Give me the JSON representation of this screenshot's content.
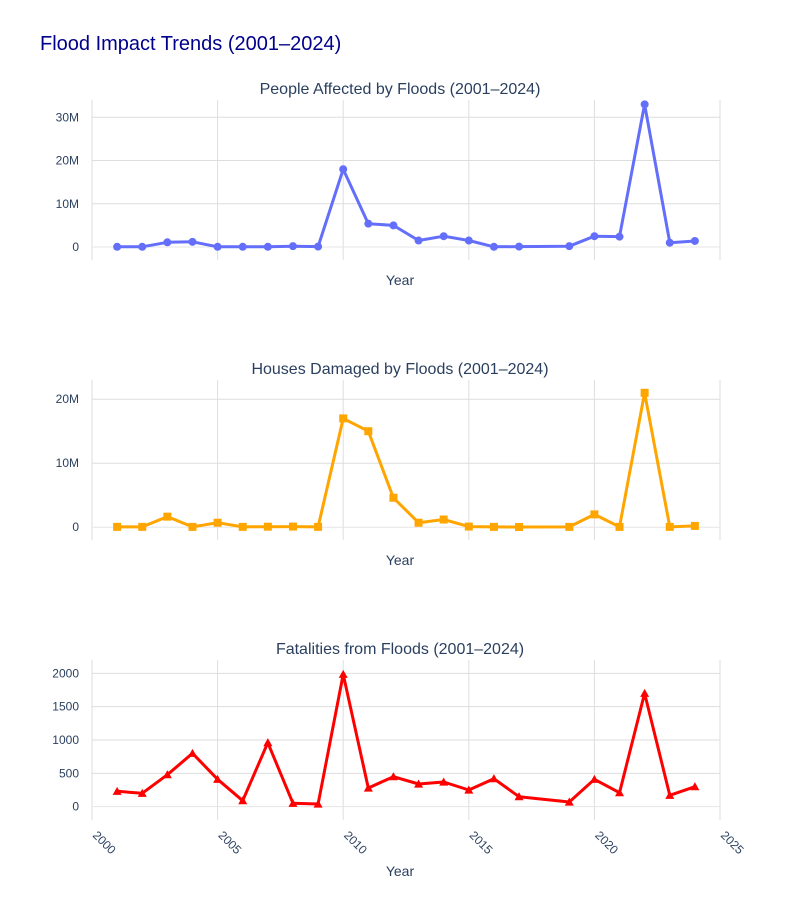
{
  "title": "Flood Impact Trends (2001–2024)",
  "chart_data": [
    {
      "type": "line",
      "title": "People Affected by Floods (2001–2024)",
      "xlabel": "Year",
      "ylabel": "",
      "xlim": [
        2000,
        2025
      ],
      "xticks": [
        2000,
        2005,
        2010,
        2015,
        2020,
        2025
      ],
      "ylim": [
        -3000000,
        34000000
      ],
      "yticks": [
        0,
        10000000,
        20000000,
        30000000
      ],
      "ytick_labels": [
        "0",
        "10M",
        "20M",
        "30M"
      ],
      "show_x_tick_labels": false,
      "marker": "circle",
      "color": "#636efa",
      "series": [
        {
          "x": [
            2001,
            2002,
            2003,
            2004,
            2005,
            2006,
            2007,
            2008,
            2009,
            2010,
            2011,
            2012,
            2013,
            2014,
            2015,
            2016,
            2017,
            2019,
            2020,
            2021,
            2022,
            2023,
            2024
          ],
          "values": [
            50000,
            60000,
            1100000,
            1200000,
            50000,
            50000,
            60000,
            200000,
            100000,
            18000000,
            5400000,
            5000000,
            1500000,
            2500000,
            1500000,
            50000,
            100000,
            200000,
            2500000,
            2400000,
            33000000,
            1000000,
            1400000
          ]
        }
      ]
    },
    {
      "type": "line",
      "title": "Houses Damaged by Floods (2001–2024)",
      "xlabel": "Year",
      "ylabel": "",
      "xlim": [
        2000,
        2025
      ],
      "xticks": [
        2000,
        2005,
        2010,
        2015,
        2020,
        2025
      ],
      "ylim": [
        -2000000,
        23000000
      ],
      "yticks": [
        0,
        10000000,
        20000000
      ],
      "ytick_labels": [
        "0",
        "10M",
        "20M"
      ],
      "show_x_tick_labels": false,
      "marker": "square",
      "color": "#ffa500",
      "series": [
        {
          "x": [
            2001,
            2002,
            2003,
            2004,
            2005,
            2006,
            2007,
            2008,
            2009,
            2010,
            2011,
            2012,
            2013,
            2014,
            2015,
            2016,
            2017,
            2019,
            2020,
            2021,
            2022,
            2023,
            2024
          ],
          "values": [
            50000,
            50000,
            1650000,
            50000,
            700000,
            50000,
            80000,
            100000,
            50000,
            17000000,
            15000000,
            4600000,
            700000,
            1200000,
            100000,
            50000,
            30000,
            50000,
            2000000,
            50000,
            21000000,
            50000,
            200000
          ]
        }
      ]
    },
    {
      "type": "line",
      "title": "Fatalities from Floods (2001–2024)",
      "xlabel": "Year",
      "ylabel": "",
      "xlim": [
        2000,
        2025
      ],
      "xticks": [
        2000,
        2005,
        2010,
        2015,
        2020,
        2025
      ],
      "ylim": [
        -200,
        2200
      ],
      "yticks": [
        0,
        500,
        1000,
        1500,
        2000
      ],
      "ytick_labels": [
        "0",
        "500",
        "1000",
        "1500",
        "2000"
      ],
      "show_x_tick_labels": true,
      "xtick_labels": [
        "2000",
        "2005",
        "2010",
        "2015",
        "2020",
        "2025"
      ],
      "marker": "triangle-up",
      "color": "#ff0000",
      "series": [
        {
          "x": [
            2001,
            2002,
            2003,
            2004,
            2005,
            2006,
            2007,
            2008,
            2009,
            2010,
            2011,
            2012,
            2013,
            2014,
            2015,
            2016,
            2017,
            2019,
            2020,
            2021,
            2022,
            2023,
            2024
          ],
          "values": [
            230,
            200,
            480,
            800,
            410,
            90,
            960,
            50,
            40,
            1985,
            280,
            450,
            340,
            370,
            250,
            420,
            150,
            70,
            410,
            210,
            1700,
            170,
            300
          ]
        }
      ]
    }
  ]
}
